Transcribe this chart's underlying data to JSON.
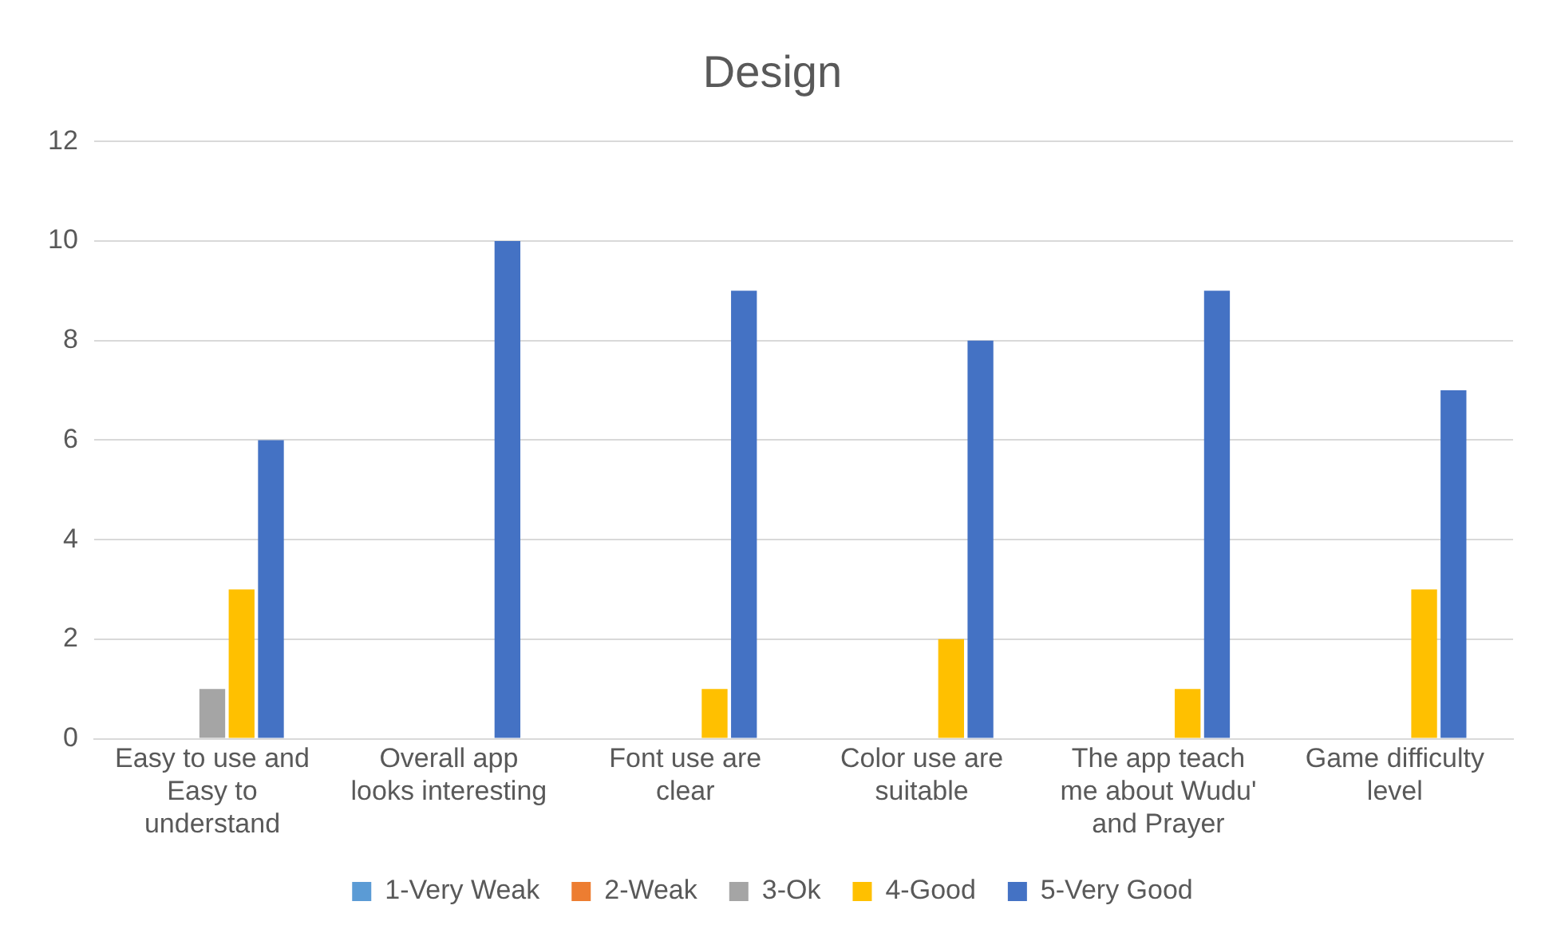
{
  "chart_data": {
    "type": "bar",
    "title": "Design",
    "categories": [
      "Easy to use and Easy to understand",
      "Overall app looks interesting",
      "Font use are clear",
      "Color use are suitable",
      "The app teach me about Wudu' and Prayer",
      "Game difficulty level"
    ],
    "series": [
      {
        "name": "1-Very Weak",
        "color": "#5b9bd5",
        "values": [
          0,
          0,
          0,
          0,
          0,
          0
        ]
      },
      {
        "name": "2-Weak",
        "color": "#ed7d31",
        "values": [
          0,
          0,
          0,
          0,
          0,
          0
        ]
      },
      {
        "name": "3-Ok",
        "color": "#a5a5a5",
        "values": [
          1,
          0,
          0,
          0,
          0,
          0
        ]
      },
      {
        "name": "4-Good",
        "color": "#ffc000",
        "values": [
          3,
          0,
          1,
          2,
          1,
          3
        ]
      },
      {
        "name": "5-Very Good",
        "color": "#4472c4",
        "values": [
          6,
          10,
          9,
          8,
          9,
          7
        ]
      }
    ],
    "ylim": [
      0,
      12
    ],
    "yticks": [
      0,
      2,
      4,
      6,
      8,
      10,
      12
    ],
    "grid": "y",
    "legend": "bottom"
  }
}
